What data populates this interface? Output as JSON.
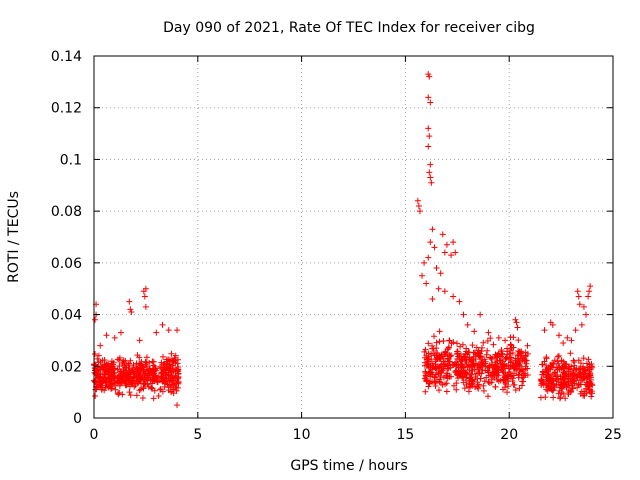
{
  "chart_data": {
    "type": "scatter",
    "title": "Day 090 of 2021, Rate Of TEC Index for receiver cibg",
    "xlabel": "GPS time / hours",
    "ylabel": "ROTI / TECUs",
    "xlim": [
      0,
      25
    ],
    "ylim": [
      0,
      0.14
    ],
    "x_ticks": [
      "0",
      "5",
      "10",
      "15",
      "20",
      "25"
    ],
    "y_ticks": [
      "0",
      "0.02",
      "0.04",
      "0.06",
      "0.08",
      "0.1",
      "0.12",
      "0.14"
    ],
    "grid": true,
    "marker": "+",
    "color": "#ff0000",
    "clusters": [
      {
        "x_range": [
          0.0,
          4.1
        ],
        "y_range": [
          0.007,
          0.026
        ],
        "count": 520
      },
      {
        "x_range": [
          15.9,
          20.9
        ],
        "y_range": [
          0.006,
          0.034
        ],
        "count": 560
      },
      {
        "x_range": [
          21.5,
          24.0
        ],
        "y_range": [
          0.005,
          0.027
        ],
        "count": 280
      }
    ],
    "outliers": [
      [
        0.1,
        0.044
      ],
      [
        0.1,
        0.04
      ],
      [
        0.05,
        0.038
      ],
      [
        0.3,
        0.028
      ],
      [
        0.6,
        0.032
      ],
      [
        1.0,
        0.031
      ],
      [
        1.3,
        0.033
      ],
      [
        1.7,
        0.045
      ],
      [
        1.75,
        0.042
      ],
      [
        1.8,
        0.041
      ],
      [
        2.4,
        0.049
      ],
      [
        2.45,
        0.047
      ],
      [
        2.5,
        0.05
      ],
      [
        2.5,
        0.043
      ],
      [
        2.2,
        0.03
      ],
      [
        3.0,
        0.033
      ],
      [
        3.3,
        0.036
      ],
      [
        3.6,
        0.034
      ],
      [
        4.0,
        0.034
      ],
      [
        4.0,
        0.005
      ],
      [
        15.6,
        0.084
      ],
      [
        15.65,
        0.082
      ],
      [
        15.7,
        0.08
      ],
      [
        16.1,
        0.133
      ],
      [
        16.15,
        0.132
      ],
      [
        16.1,
        0.124
      ],
      [
        16.2,
        0.122
      ],
      [
        16.1,
        0.112
      ],
      [
        16.15,
        0.109
      ],
      [
        16.1,
        0.105
      ],
      [
        16.2,
        0.098
      ],
      [
        16.15,
        0.095
      ],
      [
        16.2,
        0.093
      ],
      [
        16.25,
        0.091
      ],
      [
        16.3,
        0.073
      ],
      [
        16.2,
        0.068
      ],
      [
        16.4,
        0.066
      ],
      [
        16.1,
        0.062
      ],
      [
        15.9,
        0.06
      ],
      [
        16.8,
        0.071
      ],
      [
        17.0,
        0.067
      ],
      [
        16.9,
        0.064
      ],
      [
        17.2,
        0.063
      ],
      [
        17.3,
        0.068
      ],
      [
        17.4,
        0.064
      ],
      [
        16.5,
        0.058
      ],
      [
        16.7,
        0.056
      ],
      [
        15.8,
        0.055
      ],
      [
        16.0,
        0.052
      ],
      [
        16.6,
        0.05
      ],
      [
        16.9,
        0.049
      ],
      [
        17.3,
        0.047
      ],
      [
        17.6,
        0.045
      ],
      [
        16.3,
        0.046
      ],
      [
        17.8,
        0.04
      ],
      [
        18.0,
        0.036
      ],
      [
        18.6,
        0.04
      ],
      [
        19.0,
        0.033
      ],
      [
        19.5,
        0.031
      ],
      [
        20.1,
        0.028
      ],
      [
        20.3,
        0.038
      ],
      [
        20.35,
        0.037
      ],
      [
        20.4,
        0.035
      ],
      [
        19.8,
        0.03
      ],
      [
        21.7,
        0.034
      ],
      [
        22.0,
        0.037
      ],
      [
        22.1,
        0.036
      ],
      [
        22.4,
        0.032
      ],
      [
        22.8,
        0.031
      ],
      [
        23.3,
        0.049
      ],
      [
        23.35,
        0.047
      ],
      [
        23.4,
        0.044
      ],
      [
        23.9,
        0.051
      ],
      [
        23.85,
        0.049
      ],
      [
        23.8,
        0.047
      ],
      [
        23.6,
        0.043
      ],
      [
        23.7,
        0.04
      ],
      [
        23.5,
        0.036
      ],
      [
        23.2,
        0.034
      ],
      [
        23.0,
        0.03
      ],
      [
        22.6,
        0.029
      ]
    ]
  }
}
